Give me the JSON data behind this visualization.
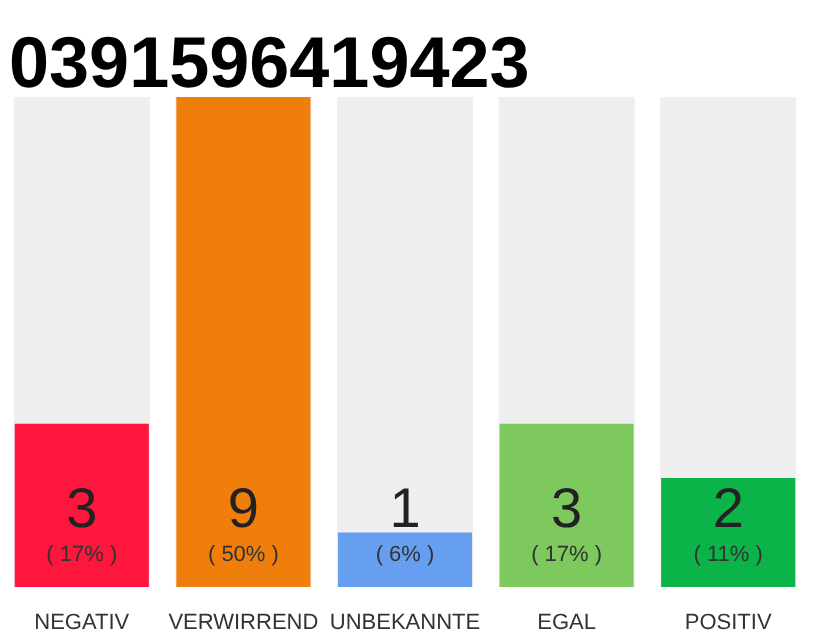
{
  "chart_data": {
    "type": "bar",
    "title": "0391596419423",
    "categories": [
      "NEGATIV",
      "VERWIRREND",
      "UNBEKANNTE",
      "EGAL",
      "POSITIV"
    ],
    "values": [
      3,
      9,
      1,
      3,
      2
    ],
    "colors": [
      "#ff163c",
      "#f07e0b",
      "#679ff0",
      "#7dc95e",
      "#0bb348"
    ],
    "data_labels": true,
    "annotations": [
      "( 17% )",
      "( 50% )",
      "( 6% )",
      "( 17% )",
      "( 11% )"
    ],
    "grid": false
  }
}
